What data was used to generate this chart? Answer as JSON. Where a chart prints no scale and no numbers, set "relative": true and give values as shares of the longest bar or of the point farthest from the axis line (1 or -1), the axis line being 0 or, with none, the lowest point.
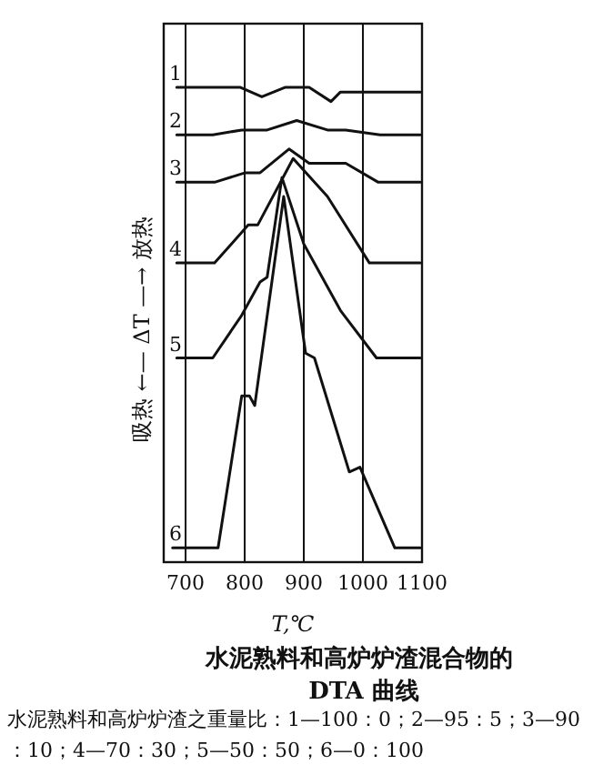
{
  "chart_data": {
    "type": "line",
    "relative": true,
    "title": "水泥熟料和高炉炉渣混合物的 DTA 曲线",
    "xlabel": "T,℃",
    "ylabel": "吸热 ←— ΔT —→ 放热",
    "xlim": [
      663,
      1100
    ],
    "xticks": [
      700,
      800,
      900,
      1000,
      1100
    ],
    "grid": "x",
    "marker": "none",
    "line_style": "solid",
    "annotations": [
      "水泥熟料和高炉炉渣之重量比：1—100：0；2—95：5；3—90：10；4—70：30；5—50：50；6—0：100"
    ],
    "series": [
      {
        "name": "1",
        "color": "#111111",
        "x": [
          685,
          792,
          829,
          869,
          909,
          946,
          962,
          1097
        ],
        "values": [
          1,
          1,
          0.98,
          1,
          1,
          0.97,
          0.99,
          0.99
        ]
      },
      {
        "name": "2",
        "color": "#111111",
        "x": [
          685,
          746,
          795,
          838,
          888,
          940,
          971,
          1029,
          1097
        ],
        "values": [
          0.9,
          0.9,
          0.91,
          0.91,
          0.93,
          0.91,
          0.91,
          0.9,
          0.9
        ]
      },
      {
        "name": "3",
        "color": "#111111",
        "x": [
          685,
          749,
          801,
          826,
          875,
          909,
          971,
          1026,
          1097
        ],
        "values": [
          0.8,
          0.8,
          0.82,
          0.82,
          0.87,
          0.84,
          0.84,
          0.8,
          0.8
        ]
      },
      {
        "name": "4",
        "color": "#111111",
        "x": [
          685,
          749,
          806,
          822,
          882,
          940,
          1011,
          1097
        ],
        "values": [
          0.63,
          0.63,
          0.71,
          0.71,
          0.85,
          0.77,
          0.63,
          0.63
        ]
      },
      {
        "name": "5",
        "color": "#111111",
        "x": [
          685,
          746,
          795,
          826,
          838,
          863,
          900,
          962,
          1023,
          1097
        ],
        "values": [
          0.43,
          0.43,
          0.52,
          0.59,
          0.6,
          0.81,
          0.67,
          0.53,
          0.43,
          0.43
        ]
      },
      {
        "name": "6",
        "color": "#111111",
        "x": [
          678,
          755,
          795,
          808,
          817,
          866,
          903,
          918,
          977,
          995,
          1054,
          1097
        ],
        "values": [
          0.03,
          0.03,
          0.35,
          0.35,
          0.33,
          0.77,
          0.44,
          0.43,
          0.19,
          0.2,
          0.03,
          0.03
        ]
      }
    ]
  }
}
